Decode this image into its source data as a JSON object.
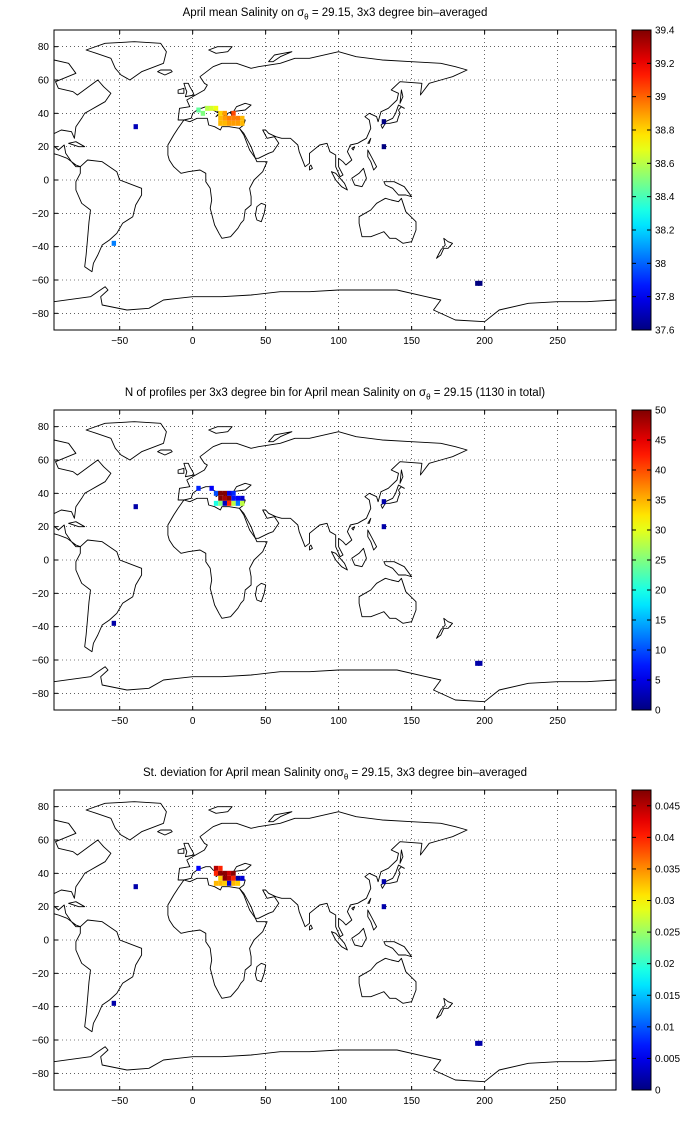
{
  "chart_data": [
    {
      "type": "heatmap",
      "title": {
        "pre": "April mean Salinity on ",
        "sym": "σ",
        "sub": "θ",
        "post": " = 29.15, 3x3 degree bin–averaged"
      },
      "xlim": [
        -95,
        290
      ],
      "ylim": [
        -90,
        90
      ],
      "x_ticks": [
        -50,
        0,
        50,
        100,
        150,
        200,
        250
      ],
      "y_ticks": [
        -80,
        -60,
        -40,
        -20,
        0,
        20,
        40,
        60,
        80
      ],
      "grid": "dotted",
      "colorbar": {
        "min": 37.6,
        "max": 39.4,
        "ticks": [
          "37.6",
          "37.8",
          "38",
          "38.2",
          "38.4",
          "38.6",
          "38.8",
          "39",
          "39.2",
          "39.4"
        ],
        "colormap": "jet"
      },
      "cells": [
        {
          "lon": -39,
          "lat": 32,
          "value": 37.7
        },
        {
          "lon": -54,
          "lat": -38,
          "value": 38.05
        },
        {
          "lon": 4,
          "lat": 42,
          "value": 38.45
        },
        {
          "lon": 7,
          "lat": 40,
          "value": 38.5
        },
        {
          "lon": 10,
          "lat": 43,
          "value": 38.6
        },
        {
          "lon": 13,
          "lat": 43,
          "value": 38.65
        },
        {
          "lon": 16,
          "lat": 43,
          "value": 38.7
        },
        {
          "lon": 19,
          "lat": 40,
          "value": 38.8
        },
        {
          "lon": 19,
          "lat": 37,
          "value": 38.85
        },
        {
          "lon": 19,
          "lat": 34,
          "value": 38.85
        },
        {
          "lon": 22,
          "lat": 40,
          "value": 38.9
        },
        {
          "lon": 22,
          "lat": 37,
          "value": 38.9
        },
        {
          "lon": 22,
          "lat": 34,
          "value": 38.85
        },
        {
          "lon": 25,
          "lat": 37,
          "value": 38.95
        },
        {
          "lon": 25,
          "lat": 34,
          "value": 38.9
        },
        {
          "lon": 28,
          "lat": 40,
          "value": 39.05
        },
        {
          "lon": 28,
          "lat": 37,
          "value": 38.95
        },
        {
          "lon": 28,
          "lat": 34,
          "value": 38.9
        },
        {
          "lon": 31,
          "lat": 37,
          "value": 38.95
        },
        {
          "lon": 31,
          "lat": 34,
          "value": 38.9
        },
        {
          "lon": 34,
          "lat": 37,
          "value": 38.85
        },
        {
          "lon": 34,
          "lat": 34,
          "value": 38.85
        },
        {
          "lon": 131,
          "lat": 35,
          "value": 37.6
        },
        {
          "lon": 131,
          "lat": 20,
          "value": 37.6
        },
        {
          "lon": 195,
          "lat": -62,
          "value": 37.6
        },
        {
          "lon": 197,
          "lat": -62,
          "value": 37.6
        }
      ]
    },
    {
      "type": "heatmap",
      "title": {
        "pre": "N of profiles per 3x3 degree bin for April mean Salinity on ",
        "sym": "σ",
        "sub": "θ",
        "post": " = 29.15 (1130 in total)"
      },
      "xlim": [
        -95,
        290
      ],
      "ylim": [
        -90,
        90
      ],
      "x_ticks": [
        -50,
        0,
        50,
        100,
        150,
        200,
        250
      ],
      "y_ticks": [
        -80,
        -60,
        -40,
        -20,
        0,
        20,
        40,
        60,
        80
      ],
      "grid": "dotted",
      "colorbar": {
        "min": 0,
        "max": 50,
        "ticks": [
          "0",
          "5",
          "10",
          "15",
          "20",
          "25",
          "30",
          "35",
          "40",
          "45",
          "50"
        ],
        "colormap": "jet"
      },
      "cells": [
        {
          "lon": -39,
          "lat": 32,
          "value": 2
        },
        {
          "lon": -54,
          "lat": -38,
          "value": 2
        },
        {
          "lon": 4,
          "lat": 43,
          "value": 8
        },
        {
          "lon": 13,
          "lat": 43,
          "value": 6
        },
        {
          "lon": 16,
          "lat": 40,
          "value": 10
        },
        {
          "lon": 19,
          "lat": 40,
          "value": 50
        },
        {
          "lon": 19,
          "lat": 37,
          "value": 50
        },
        {
          "lon": 22,
          "lat": 40,
          "value": 50
        },
        {
          "lon": 22,
          "lat": 37,
          "value": 48
        },
        {
          "lon": 25,
          "lat": 40,
          "value": 5
        },
        {
          "lon": 25,
          "lat": 37,
          "value": 50
        },
        {
          "lon": 28,
          "lat": 40,
          "value": 8
        },
        {
          "lon": 28,
          "lat": 37,
          "value": 7
        },
        {
          "lon": 31,
          "lat": 37,
          "value": 6
        },
        {
          "lon": 34,
          "lat": 37,
          "value": 4
        },
        {
          "lon": 16,
          "lat": 34,
          "value": 20
        },
        {
          "lon": 19,
          "lat": 34,
          "value": 25
        },
        {
          "lon": 22,
          "lat": 34,
          "value": 3
        },
        {
          "lon": 25,
          "lat": 34,
          "value": 42
        },
        {
          "lon": 28,
          "lat": 34,
          "value": 28
        },
        {
          "lon": 31,
          "lat": 34,
          "value": 12
        },
        {
          "lon": 34,
          "lat": 34,
          "value": 28
        },
        {
          "lon": 131,
          "lat": 35,
          "value": 2
        },
        {
          "lon": 131,
          "lat": 20,
          "value": 2
        },
        {
          "lon": 195,
          "lat": -62,
          "value": 2
        },
        {
          "lon": 197,
          "lat": -62,
          "value": 2
        }
      ]
    },
    {
      "type": "heatmap",
      "title": {
        "pre": "St. deviation for April mean Salinity on",
        "sym": "σ",
        "sub": "θ",
        "post": " = 29.15, 3x3 degree bin–averaged"
      },
      "xlim": [
        -95,
        290
      ],
      "ylim": [
        -90,
        90
      ],
      "x_ticks": [
        -50,
        0,
        50,
        100,
        150,
        200,
        250
      ],
      "y_ticks": [
        -80,
        -60,
        -40,
        -20,
        0,
        20,
        40,
        60,
        80
      ],
      "grid": "dotted",
      "colorbar": {
        "min": 0,
        "max": 0.0475,
        "ticks": [
          "0",
          "0.005",
          "0.01",
          "0.015",
          "0.02",
          "0.025",
          "0.03",
          "0.035",
          "0.04",
          "0.045"
        ],
        "colormap": "jet"
      },
      "cells": [
        {
          "lon": -39,
          "lat": 32,
          "value": 0.002
        },
        {
          "lon": -54,
          "lat": -38,
          "value": 0.002
        },
        {
          "lon": 4,
          "lat": 43,
          "value": 0.006
        },
        {
          "lon": 16,
          "lat": 43,
          "value": 0.045
        },
        {
          "lon": 19,
          "lat": 43,
          "value": 0.04
        },
        {
          "lon": 16,
          "lat": 40,
          "value": 0.04
        },
        {
          "lon": 19,
          "lat": 40,
          "value": 0.047
        },
        {
          "lon": 22,
          "lat": 40,
          "value": 0.047
        },
        {
          "lon": 25,
          "lat": 40,
          "value": 0.044
        },
        {
          "lon": 28,
          "lat": 40,
          "value": 0.047
        },
        {
          "lon": 19,
          "lat": 37,
          "value": 0.032
        },
        {
          "lon": 22,
          "lat": 37,
          "value": 0.047
        },
        {
          "lon": 25,
          "lat": 37,
          "value": 0.045
        },
        {
          "lon": 28,
          "lat": 37,
          "value": 0.04
        },
        {
          "lon": 31,
          "lat": 37,
          "value": 0.002
        },
        {
          "lon": 34,
          "lat": 37,
          "value": 0.004
        },
        {
          "lon": 16,
          "lat": 34,
          "value": 0.033
        },
        {
          "lon": 19,
          "lat": 34,
          "value": 0.033
        },
        {
          "lon": 22,
          "lat": 34,
          "value": 0.032
        },
        {
          "lon": 25,
          "lat": 34,
          "value": 0.004
        },
        {
          "lon": 28,
          "lat": 34,
          "value": 0.033
        },
        {
          "lon": 31,
          "lat": 34,
          "value": 0.032
        },
        {
          "lon": 131,
          "lat": 35,
          "value": 0.002
        },
        {
          "lon": 131,
          "lat": 20,
          "value": 0.002
        },
        {
          "lon": 195,
          "lat": -62,
          "value": 0.002
        },
        {
          "lon": 197,
          "lat": -62,
          "value": 0.002
        }
      ]
    }
  ]
}
